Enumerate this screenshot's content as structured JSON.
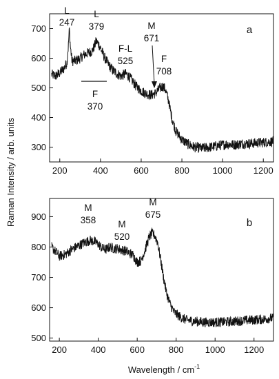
{
  "chart_data": [
    {
      "type": "line",
      "panel": "a",
      "xlim": [
        150,
        1250
      ],
      "ylim": [
        250,
        750
      ],
      "xticks": [
        200,
        400,
        600,
        800,
        1000,
        1200
      ],
      "yticks": [
        300,
        400,
        500,
        600,
        700
      ],
      "grid": false,
      "series": [
        {
          "x": [
            160,
            180,
            200,
            220,
            235,
            242,
            247,
            252,
            260,
            280,
            300,
            320,
            340,
            360,
            370,
            379,
            390,
            400,
            420,
            440,
            460,
            480,
            500,
            525,
            550,
            575,
            600,
            625,
            650,
            671,
            690,
            708,
            720,
            735,
            750,
            770,
            800,
            830,
            860,
            900,
            940,
            980,
            1020,
            1060,
            1100,
            1140,
            1180,
            1220,
            1250
          ],
          "y": [
            545,
            540,
            550,
            565,
            585,
            640,
            700,
            640,
            590,
            592,
            600,
            612,
            618,
            625,
            640,
            658,
            648,
            635,
            602,
            578,
            560,
            548,
            540,
            548,
            530,
            505,
            490,
            480,
            476,
            482,
            498,
            506,
            492,
            455,
            400,
            355,
            325,
            310,
            300,
            296,
            300,
            305,
            310,
            308,
            312,
            312,
            315,
            317,
            320
          ]
        }
      ],
      "annotations": [
        {
          "letter": "L",
          "value": "247"
        },
        {
          "letter": "L",
          "value": "379"
        },
        {
          "letter": "F-L",
          "value": "525"
        },
        {
          "letter": "M",
          "value": "671"
        },
        {
          "letter": "F",
          "value": "708"
        },
        {
          "letter": "F",
          "value": "370"
        }
      ],
      "panel_label": "a"
    },
    {
      "type": "line",
      "panel": "b",
      "xlim": [
        150,
        1300
      ],
      "ylim": [
        490,
        960
      ],
      "xticks": [
        200,
        400,
        600,
        800,
        1000,
        1200
      ],
      "yticks": [
        500,
        600,
        700,
        800,
        900
      ],
      "grid": false,
      "series": [
        {
          "x": [
            160,
            180,
            200,
            230,
            260,
            300,
            330,
            358,
            380,
            400,
            420,
            440,
            460,
            480,
            500,
            520,
            540,
            560,
            580,
            600,
            620,
            640,
            660,
            675,
            690,
            705,
            720,
            735,
            750,
            770,
            790,
            820,
            850,
            900,
            950,
            1000,
            1050,
            1100,
            1150,
            1200,
            1250,
            1280,
            1300
          ],
          "y": [
            800,
            785,
            770,
            775,
            790,
            805,
            815,
            822,
            818,
            810,
            795,
            792,
            800,
            795,
            795,
            790,
            788,
            780,
            772,
            750,
            755,
            790,
            830,
            845,
            838,
            815,
            760,
            700,
            650,
            610,
            585,
            570,
            560,
            555,
            552,
            552,
            553,
            555,
            558,
            560,
            562,
            565,
            565
          ]
        }
      ],
      "annotations": [
        {
          "letter": "M",
          "value": "358"
        },
        {
          "letter": "M",
          "value": "520"
        },
        {
          "letter": "M",
          "value": "675"
        }
      ],
      "panel_label": "b"
    }
  ],
  "axes": {
    "ylabel": "Raman Intensity / arb. units",
    "xlabel_main": "Wavelength / cm",
    "xlabel_sup": "-1"
  }
}
